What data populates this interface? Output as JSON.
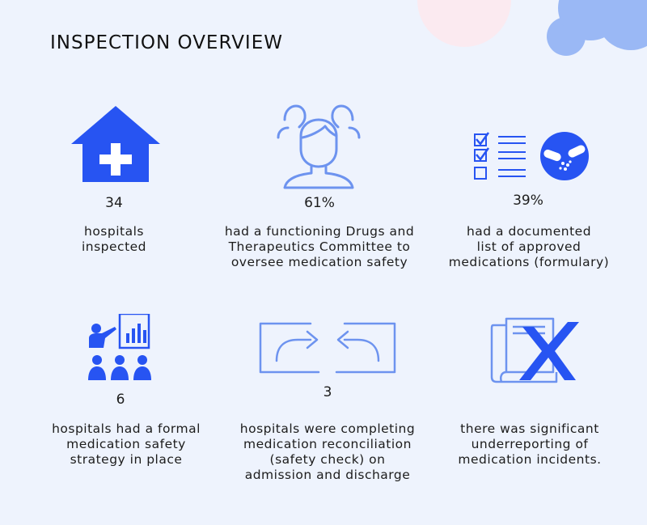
{
  "title": "INSPECTION OVERVIEW",
  "colors": {
    "primary": "#2754f2",
    "light": "#6d93ef",
    "background": "#eef3fd",
    "blob": "#9ab8f5",
    "pink": "#fbeaf0"
  },
  "stats": [
    {
      "icon": "house-cross-icon",
      "value": "34",
      "label": "hospitals\ninspected"
    },
    {
      "icon": "person-group-outline-icon",
      "value": "61%",
      "label": "had a functioning Drugs and\nTherapeutics Committee to\noversee medication safety"
    },
    {
      "icon": "checklist-pills-icon",
      "value": "39%",
      "label": "had a documented\nlist of approved\nmedications (formulary)"
    },
    {
      "icon": "presentation-audience-icon",
      "value": "6",
      "label": "hospitals had a formal\nmedication safety\nstrategy in place"
    },
    {
      "icon": "exchange-arrows-icon",
      "value": "3",
      "label": "hospitals were completing\nmedication reconciliation\n(safety check) on\nadmission and discharge"
    },
    {
      "icon": "document-cross-icon",
      "value": "",
      "label": "there was significant\nunderreporting of\nmedication incidents."
    }
  ]
}
